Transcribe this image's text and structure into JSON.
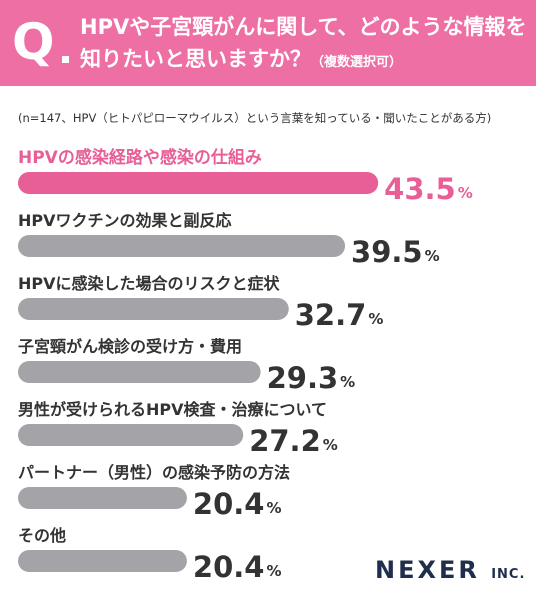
{
  "header": {
    "q_mark": "Q",
    "title_line1": "HPVや子宮頸がんに関して、どのような情報を",
    "title_line2": "知りたいと思いますか？",
    "title_note": "（複数選択可）"
  },
  "sample_note": "(n=147、HPV（ヒトパピローマウイルス）という言葉を知っている・聞いたことがある方)",
  "brand": {
    "name": "NEXER",
    "suffix": "INC."
  },
  "colors": {
    "header": "#ee6fa4",
    "highlight_bar": "#e85f97",
    "bar": "#a4a4a8",
    "highlight_text": "#e85f97",
    "text": "#333333"
  },
  "chart_data": {
    "type": "bar",
    "orientation": "horizontal",
    "unit": "%",
    "categories": [
      "HPVの感染経路や感染の仕組み",
      "HPVワクチンの効果と副反応",
      "HPVに感染した場合のリスクと症状",
      "子宮頸がん検診の受け方・費用",
      "男性が受けられるHPV検査・治療について",
      "パートナー（男性）の感染予防の方法",
      "その他"
    ],
    "values": [
      43.5,
      39.5,
      32.7,
      29.3,
      27.2,
      20.4,
      20.4
    ],
    "value_labels": [
      "43.5",
      "39.5",
      "32.7",
      "29.3",
      "27.2",
      "20.4",
      "20.4"
    ],
    "highlight_index": 0,
    "title": "",
    "xlabel": "",
    "ylabel": "",
    "xlim": [
      0,
      50
    ],
    "grid": false,
    "legend": "none"
  }
}
